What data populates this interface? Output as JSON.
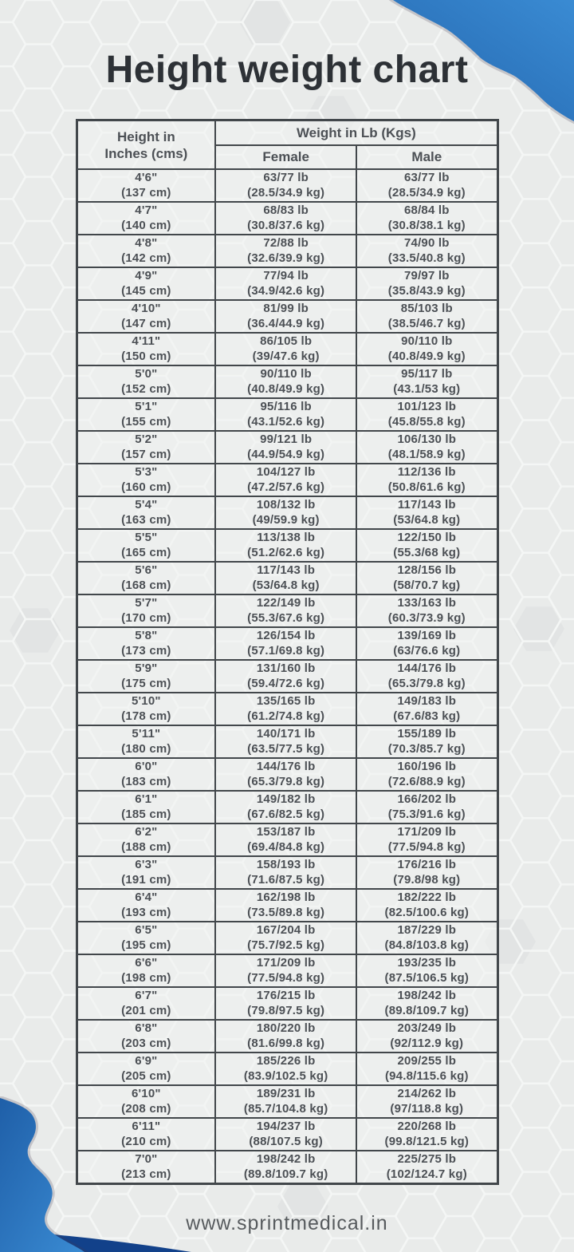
{
  "page": {
    "title": "Height weight chart",
    "footer": "www.sprintmedical.in"
  },
  "colors": {
    "background": "#e9ebea",
    "hexagon_line": "#f4f6f5",
    "hexagon_shade": "#e1e3e3",
    "accent_blue_light": "#3a8bd3",
    "accent_blue": "#2a72ba",
    "accent_blue_dark": "#12418a",
    "table_border": "#42474b",
    "title_text": "#2d3136",
    "cell_text": "#4c5055"
  },
  "chart_data": {
    "type": "table",
    "title": "Height weight chart",
    "header": {
      "col1": "Height in\nInches (cms)",
      "group": "Weight in Lb (Kgs)",
      "sub": [
        "Female",
        "Male"
      ]
    },
    "columns": [
      "Height in Inches (cms)",
      "Female",
      "Male"
    ],
    "rows": [
      [
        "4'6\"\n(137 cm)",
        "63/77 lb\n(28.5/34.9 kg)",
        "63/77 lb\n(28.5/34.9 kg)"
      ],
      [
        "4'7\"\n(140 cm)",
        "68/83 lb\n(30.8/37.6 kg)",
        "68/84 lb\n(30.8/38.1 kg)"
      ],
      [
        "4'8\"\n(142 cm)",
        "72/88 lb\n(32.6/39.9 kg)",
        "74/90 lb\n(33.5/40.8 kg)"
      ],
      [
        "4'9\"\n(145 cm)",
        "77/94 lb\n(34.9/42.6 kg)",
        "79/97 lb\n(35.8/43.9 kg)"
      ],
      [
        "4'10\"\n(147 cm)",
        "81/99 lb\n(36.4/44.9 kg)",
        "85/103 lb\n(38.5/46.7 kg)"
      ],
      [
        "4'11\"\n(150 cm)",
        "86/105 lb\n(39/47.6 kg)",
        "90/110 lb\n(40.8/49.9 kg)"
      ],
      [
        "5'0\"\n(152 cm)",
        "90/110 lb\n(40.8/49.9 kg)",
        "95/117 lb\n(43.1/53 kg)"
      ],
      [
        "5'1\"\n(155 cm)",
        "95/116 lb\n(43.1/52.6 kg)",
        "101/123 lb\n(45.8/55.8 kg)"
      ],
      [
        "5'2\"\n(157 cm)",
        "99/121 lb\n(44.9/54.9 kg)",
        "106/130 lb\n(48.1/58.9 kg)"
      ],
      [
        "5'3\"\n(160 cm)",
        "104/127 lb\n(47.2/57.6 kg)",
        "112/136 lb\n(50.8/61.6 kg)"
      ],
      [
        "5'4\"\n(163 cm)",
        "108/132 lb\n(49/59.9 kg)",
        "117/143 lb\n(53/64.8 kg)"
      ],
      [
        "5'5\"\n(165 cm)",
        "113/138 lb\n(51.2/62.6 kg)",
        "122/150 lb\n(55.3/68 kg)"
      ],
      [
        "5'6\"\n(168 cm)",
        "117/143 lb\n(53/64.8 kg)",
        "128/156 lb\n(58/70.7 kg)"
      ],
      [
        "5'7\"\n(170 cm)",
        "122/149 lb\n(55.3/67.6 kg)",
        "133/163 lb\n(60.3/73.9 kg)"
      ],
      [
        "5'8\"\n(173 cm)",
        "126/154 lb\n(57.1/69.8 kg)",
        "139/169 lb\n(63/76.6 kg)"
      ],
      [
        "5'9\"\n(175 cm)",
        "131/160 lb\n(59.4/72.6 kg)",
        "144/176 lb\n(65.3/79.8 kg)"
      ],
      [
        "5'10\"\n(178 cm)",
        "135/165 lb\n(61.2/74.8 kg)",
        "149/183 lb\n(67.6/83 kg)"
      ],
      [
        "5'11\"\n(180 cm)",
        "140/171 lb\n(63.5/77.5 kg)",
        "155/189 lb\n(70.3/85.7 kg)"
      ],
      [
        "6'0\"\n(183 cm)",
        "144/176 lb\n(65.3/79.8 kg)",
        "160/196 lb\n(72.6/88.9 kg)"
      ],
      [
        "6'1\"\n(185 cm)",
        "149/182 lb\n(67.6/82.5 kg)",
        "166/202 lb\n(75.3/91.6 kg)"
      ],
      [
        "6'2\"\n(188 cm)",
        "153/187 lb\n(69.4/84.8 kg)",
        "171/209 lb\n(77.5/94.8 kg)"
      ],
      [
        "6'3\"\n(191 cm)",
        "158/193 lb\n(71.6/87.5 kg)",
        "176/216 lb\n(79.8/98 kg)"
      ],
      [
        "6'4\"\n(193 cm)",
        "162/198 lb\n(73.5/89.8 kg)",
        "182/222 lb\n(82.5/100.6 kg)"
      ],
      [
        "6'5\"\n(195 cm)",
        "167/204 lb\n(75.7/92.5 kg)",
        "187/229 lb\n(84.8/103.8 kg)"
      ],
      [
        "6'6\"\n(198 cm)",
        "171/209 lb\n(77.5/94.8 kg)",
        "193/235 lb\n(87.5/106.5 kg)"
      ],
      [
        "6'7\"\n(201 cm)",
        "176/215 lb\n(79.8/97.5 kg)",
        "198/242 lb\n(89.8/109.7 kg)"
      ],
      [
        "6'8\"\n(203 cm)",
        "180/220 lb\n(81.6/99.8 kg)",
        "203/249 lb\n(92/112.9 kg)"
      ],
      [
        "6'9\"\n(205 cm)",
        "185/226 lb\n(83.9/102.5 kg)",
        "209/255 lb\n(94.8/115.6 kg)"
      ],
      [
        "6'10\"\n(208 cm)",
        "189/231 lb\n(85.7/104.8 kg)",
        "214/262 lb\n(97/118.8 kg)"
      ],
      [
        "6'11\"\n(210 cm)",
        "194/237 lb\n(88/107.5 kg)",
        "220/268 lb\n(99.8/121.5 kg)"
      ],
      [
        "7'0\"\n(213 cm)",
        "198/242 lb\n(89.8/109.7 kg)",
        "225/275 lb\n(102/124.7 kg)"
      ]
    ]
  }
}
